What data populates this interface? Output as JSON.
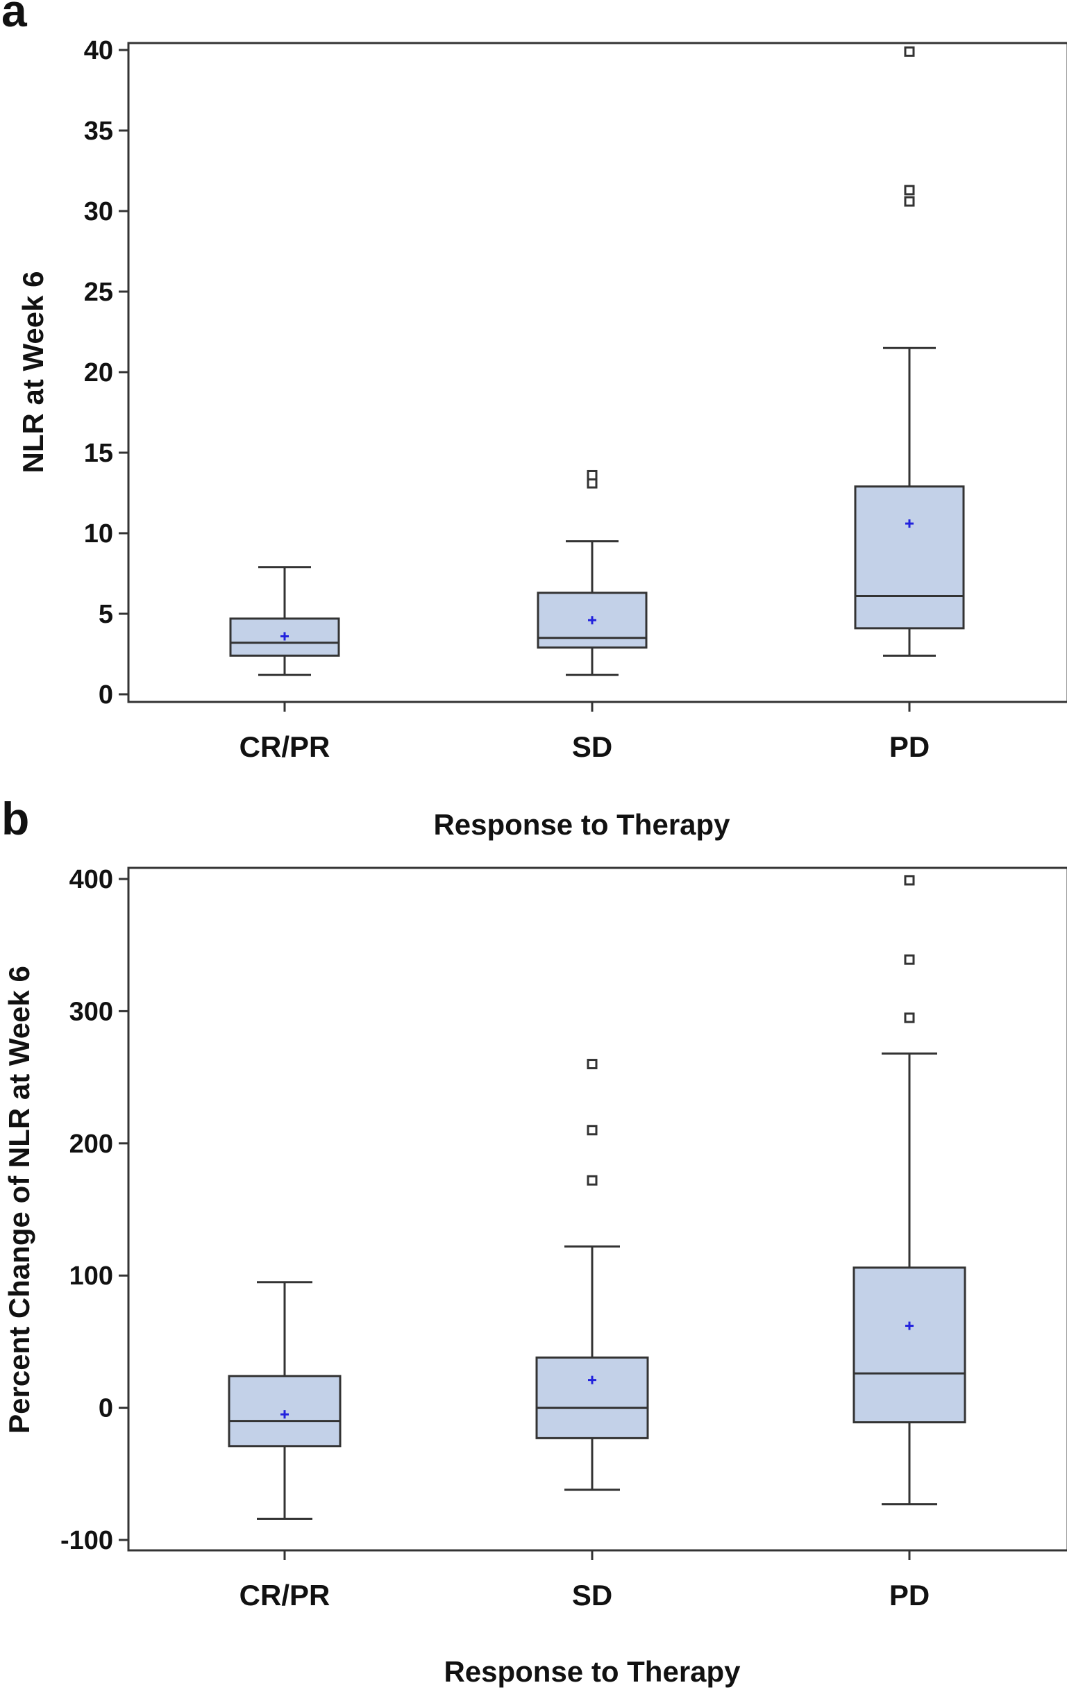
{
  "figure": {
    "panel_labels": [
      "a",
      "b"
    ]
  },
  "chart_data": [
    {
      "type": "box",
      "panel": "a",
      "title": "",
      "xlabel": "Response to Therapy",
      "ylabel": "NLR at Week 6",
      "ylim": [
        0,
        40
      ],
      "yticks": [
        "0",
        "5",
        "10",
        "15",
        "20",
        "25",
        "30",
        "35",
        "40"
      ],
      "categories": [
        "CR/PR",
        "SD",
        "PD"
      ],
      "grid": false,
      "colors": {
        "box_fill": "#c3d1e8",
        "box_stroke": "#333333",
        "mean_marker": "#2222dd",
        "outlier": "#333333"
      },
      "boxes": [
        {
          "category": "CR/PR",
          "whisker_low": 1.2,
          "q1": 2.4,
          "median": 3.2,
          "q3": 4.7,
          "whisker_high": 7.9,
          "mean": 3.6,
          "outliers": []
        },
        {
          "category": "SD",
          "whisker_low": 1.2,
          "q1": 2.9,
          "median": 3.5,
          "q3": 6.3,
          "whisker_high": 9.5,
          "mean": 4.6,
          "outliers": [
            13.1,
            13.6
          ]
        },
        {
          "category": "PD",
          "whisker_low": 2.4,
          "q1": 4.1,
          "median": 6.1,
          "q3": 12.9,
          "whisker_high": 21.5,
          "mean": 10.6,
          "outliers": [
            30.6,
            31.3,
            39.9
          ]
        }
      ]
    },
    {
      "type": "box",
      "panel": "b",
      "title": "",
      "xlabel": "Response to Therapy",
      "ylabel": "Percent Change of NLR at Week 6",
      "ylim": [
        -100,
        400
      ],
      "yticks": [
        "-100",
        "0",
        "100",
        "200",
        "300",
        "400"
      ],
      "categories": [
        "CR/PR",
        "SD",
        "PD"
      ],
      "grid": false,
      "colors": {
        "box_fill": "#c3d1e8",
        "box_stroke": "#333333",
        "mean_marker": "#2222dd",
        "outlier": "#333333"
      },
      "boxes": [
        {
          "category": "CR/PR",
          "whisker_low": -84,
          "q1": -29,
          "median": -10,
          "q3": 24,
          "whisker_high": 95,
          "mean": -5,
          "outliers": []
        },
        {
          "category": "SD",
          "whisker_low": -62,
          "q1": -23,
          "median": 0,
          "q3": 38,
          "whisker_high": 122,
          "mean": 21,
          "outliers": [
            172,
            210,
            260
          ]
        },
        {
          "category": "PD",
          "whisker_low": -73,
          "q1": -11,
          "median": 26,
          "q3": 106,
          "whisker_high": 268,
          "mean": 62,
          "outliers": [
            295,
            339,
            399
          ]
        }
      ]
    }
  ]
}
